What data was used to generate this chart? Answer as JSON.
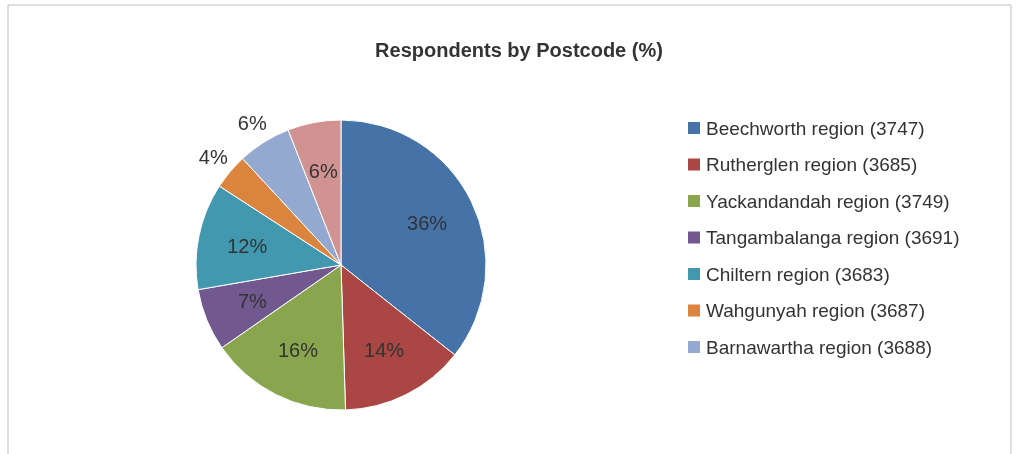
{
  "chart_data": {
    "type": "pie",
    "title": "Respondents by Postcode (%)",
    "categories": [
      "Beechworth region (3747)",
      "Rutherglen region (3685)",
      "Yackandandah region (3749)",
      "Tangambalanga region (3691)",
      "Chiltern region (3683)",
      "Wahgunyah region (3687)",
      "Barnawartha region (3688)",
      null
    ],
    "values": [
      36,
      14,
      16,
      7,
      12,
      4,
      6,
      6
    ],
    "colors": [
      "#4572a7",
      "#aa4643",
      "#89a54e",
      "#71588f",
      "#4198af",
      "#db843d",
      "#93a9cf",
      "#d19392"
    ],
    "value_labels": [
      "36%",
      "14%",
      "16%",
      "7%",
      "12%",
      "4%",
      "6%",
      "6%"
    ],
    "legend": "right"
  }
}
